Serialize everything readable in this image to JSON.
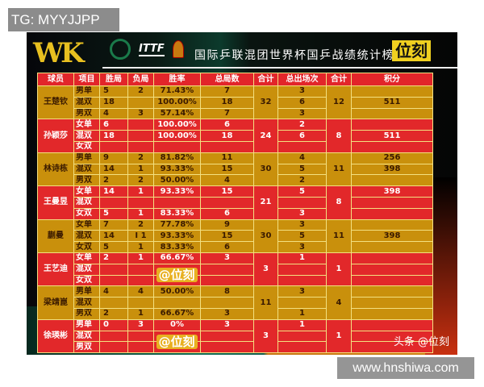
{
  "overlay_top_left": "TG: MYYJJPP",
  "overlay_bottom_right": "www.hnshiwa.com",
  "header": {
    "logo": "WK",
    "itt_logo": "ITTF",
    "title": "国际乒联混团世界杯国乒战绩统计榜",
    "brand": "位刻"
  },
  "watermark": "@位刻",
  "credit": "头条 @位刻",
  "colors": {
    "gold": "#c9900c",
    "red": "#e2282a"
  },
  "columns": [
    "球员",
    "项目",
    "胜局",
    "负局",
    "胜率",
    "总局数",
    "合计",
    "总出场次",
    "合计",
    "积分"
  ],
  "players": [
    {
      "name": "王楚钦",
      "color": "gold",
      "total_games": "32",
      "total_apps": "12",
      "rows": [
        {
          "event": "男单",
          "w": "5",
          "l": "2",
          "rate": "71.43%",
          "games": "7",
          "apps": "3",
          "pts": ""
        },
        {
          "event": "混双",
          "w": "18",
          "l": "",
          "rate": "100.00%",
          "games": "18",
          "apps": "6",
          "pts": "511"
        },
        {
          "event": "男双",
          "w": "4",
          "l": "3",
          "rate": "57.14%",
          "games": "7",
          "apps": "3",
          "pts": ""
        }
      ]
    },
    {
      "name": "孙颖莎",
      "color": "red",
      "total_games": "24",
      "total_apps": "8",
      "rows": [
        {
          "event": "女单",
          "w": "6",
          "l": "",
          "rate": "100.00%",
          "games": "6",
          "apps": "2",
          "pts": ""
        },
        {
          "event": "混双",
          "w": "18",
          "l": "",
          "rate": "100.00%",
          "games": "18",
          "apps": "6",
          "pts": "511"
        },
        {
          "event": "女双",
          "w": "",
          "l": "",
          "rate": "",
          "games": "",
          "apps": "",
          "pts": ""
        }
      ]
    },
    {
      "name": "林诗栋",
      "color": "gold",
      "total_games": "30",
      "total_apps": "11",
      "rows": [
        {
          "event": "男单",
          "w": "9",
          "l": "2",
          "rate": "81.82%",
          "games": "11",
          "apps": "4",
          "pts": "256"
        },
        {
          "event": "混双",
          "w": "14",
          "l": "1",
          "rate": "93.33%",
          "games": "15",
          "apps": "5",
          "pts": "398"
        },
        {
          "event": "男双",
          "w": "2",
          "l": "2",
          "rate": "50.00%",
          "games": "4",
          "apps": "2",
          "pts": ""
        }
      ]
    },
    {
      "name": "王曼昱",
      "color": "red",
      "total_games": "21",
      "total_apps": "8",
      "rows": [
        {
          "event": "女单",
          "w": "14",
          "l": "1",
          "rate": "93.33%",
          "games": "15",
          "apps": "5",
          "pts": "398"
        },
        {
          "event": "混双",
          "w": "",
          "l": "",
          "rate": "",
          "games": "",
          "apps": "",
          "pts": ""
        },
        {
          "event": "女双",
          "w": "5",
          "l": "1",
          "rate": "83.33%",
          "games": "6",
          "apps": "3",
          "pts": ""
        }
      ]
    },
    {
      "name": "蒯曼",
      "color": "gold",
      "total_games": "30",
      "total_apps": "11",
      "rows": [
        {
          "event": "女单",
          "w": "7",
          "l": "2",
          "rate": "77.78%",
          "games": "9",
          "apps": "3",
          "pts": ""
        },
        {
          "event": "混双",
          "w": "14",
          "l": "I 1",
          "rate": "93.33%",
          "games": "15",
          "apps": "5",
          "pts": "398"
        },
        {
          "event": "女双",
          "w": "5",
          "l": "1",
          "rate": "83.33%",
          "games": "6",
          "apps": "3",
          "pts": ""
        }
      ]
    },
    {
      "name": "王艺迪",
      "color": "red",
      "total_games": "3",
      "total_apps": "1",
      "rows": [
        {
          "event": "女单",
          "w": "2",
          "l": "1",
          "rate": "66.67%",
          "games": "3",
          "apps": "1",
          "pts": ""
        },
        {
          "event": "混双",
          "w": "",
          "l": "",
          "rate": "",
          "games": "",
          "apps": "",
          "pts": ""
        },
        {
          "event": "女双",
          "w": "",
          "l": "",
          "rate": "",
          "games": "",
          "apps": "",
          "pts": ""
        }
      ]
    },
    {
      "name": "梁靖崑",
      "color": "gold",
      "total_games": "11",
      "total_apps": "4",
      "rows": [
        {
          "event": "男单",
          "w": "4",
          "l": "4",
          "rate": "50.00%",
          "games": "8",
          "apps": "3",
          "pts": ""
        },
        {
          "event": "混双",
          "w": "",
          "l": "",
          "rate": "",
          "games": "",
          "apps": "",
          "pts": ""
        },
        {
          "event": "男双",
          "w": "2",
          "l": "1",
          "rate": "66.67%",
          "games": "3",
          "apps": "1",
          "pts": ""
        }
      ]
    },
    {
      "name": "徐瑛彬",
      "color": "red",
      "total_games": "3",
      "total_apps": "1",
      "rows": [
        {
          "event": "男单",
          "w": "0",
          "l": "3",
          "rate": "0%",
          "games": "3",
          "apps": "1",
          "pts": ""
        },
        {
          "event": "混双",
          "w": "",
          "l": "",
          "rate": "",
          "games": "",
          "apps": "",
          "pts": ""
        },
        {
          "event": "男双",
          "w": "",
          "l": "",
          "rate": "",
          "games": "",
          "apps": "",
          "pts": ""
        }
      ]
    }
  ]
}
